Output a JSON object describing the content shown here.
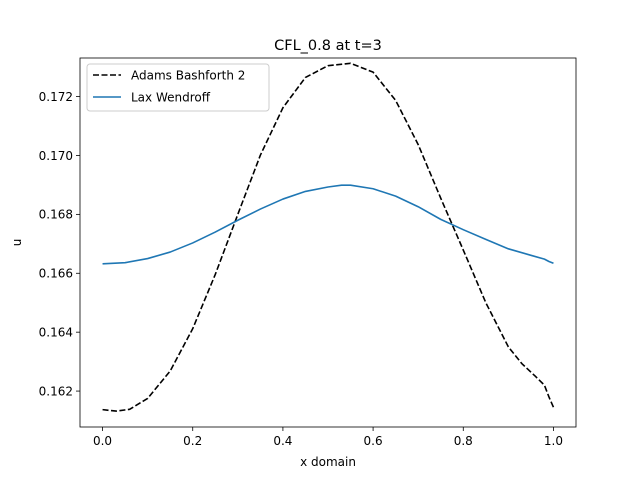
{
  "chart_data": {
    "type": "line",
    "title": "CFL_0.8 at t=3",
    "xlabel": "x domain",
    "ylabel": "u",
    "xlim": [
      -0.05,
      1.05
    ],
    "ylim": [
      0.16078,
      0.17331
    ],
    "xticks": [
      0.0,
      0.2,
      0.4,
      0.6,
      0.8,
      1.0
    ],
    "xtick_labels": [
      "0.0",
      "0.2",
      "0.4",
      "0.6",
      "0.8",
      "1.0"
    ],
    "yticks": [
      0.162,
      0.164,
      0.166,
      0.168,
      0.17,
      0.172
    ],
    "ytick_labels": [
      "0.162",
      "0.164",
      "0.166",
      "0.168",
      "0.170",
      "0.172"
    ],
    "grid": false,
    "legend_position": "upper-left",
    "series": [
      {
        "name": "Adams Bashforth 2",
        "color": "#000000",
        "dash": "dashed",
        "x": [
          0.0,
          0.03,
          0.06,
          0.1,
          0.15,
          0.2,
          0.25,
          0.3,
          0.35,
          0.4,
          0.45,
          0.5,
          0.55,
          0.6,
          0.65,
          0.7,
          0.75,
          0.8,
          0.85,
          0.9,
          0.93,
          0.96,
          0.98,
          0.99,
          1.0
        ],
        "y": [
          0.16137,
          0.16132,
          0.16138,
          0.16175,
          0.16268,
          0.16412,
          0.16596,
          0.168,
          0.17001,
          0.17162,
          0.17265,
          0.17305,
          0.17313,
          0.17283,
          0.17187,
          0.17037,
          0.16855,
          0.16679,
          0.165,
          0.1635,
          0.16293,
          0.1625,
          0.1622,
          0.1618,
          0.16145
        ]
      },
      {
        "name": "Lax Wendroff",
        "color": "#1f77b4",
        "dash": "solid",
        "x": [
          0.0,
          0.05,
          0.1,
          0.15,
          0.2,
          0.25,
          0.3,
          0.35,
          0.4,
          0.45,
          0.5,
          0.53,
          0.55,
          0.6,
          0.65,
          0.7,
          0.75,
          0.8,
          0.85,
          0.9,
          0.95,
          0.98,
          0.99,
          1.0
        ],
        "y": [
          0.16632,
          0.16636,
          0.1665,
          0.16672,
          0.16703,
          0.1674,
          0.1678,
          0.16818,
          0.16852,
          0.16878,
          0.16893,
          0.16899,
          0.16899,
          0.16887,
          0.16862,
          0.16826,
          0.16783,
          0.16748,
          0.16715,
          0.16683,
          0.16661,
          0.16648,
          0.1664,
          0.16634
        ]
      }
    ]
  }
}
